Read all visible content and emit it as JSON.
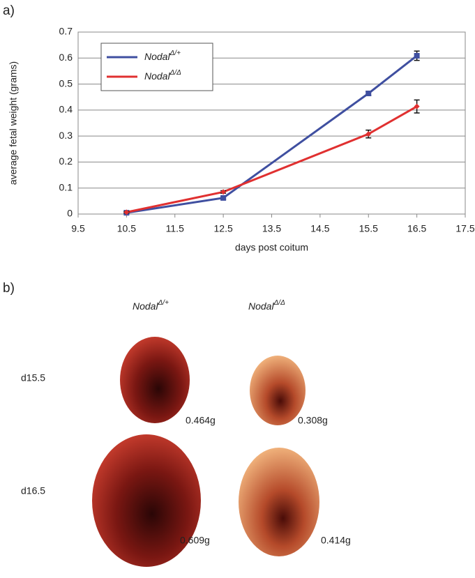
{
  "panel_a_label": "a)",
  "chart_data": {
    "type": "line",
    "x_label": "days post coitum",
    "y_label": "average fetal weight (grams)",
    "x": [
      10.5,
      12.5,
      15.5,
      16.5
    ],
    "xlim": [
      9.5,
      17.5
    ],
    "xticks": [
      9.5,
      10.5,
      11.5,
      12.5,
      13.5,
      14.5,
      15.5,
      16.5,
      17.5
    ],
    "ylim": [
      0,
      0.7
    ],
    "yticks": [
      0,
      0.1,
      0.2,
      0.3,
      0.4,
      0.5,
      0.6,
      0.7
    ],
    "grid": true,
    "legend": "upper left",
    "series": [
      {
        "name": "NodalΔ/+",
        "color": "#3f4fa0",
        "marker": "square",
        "values": [
          0.005,
          0.062,
          0.464,
          0.609
        ],
        "errors": [
          0.003,
          0.005,
          0.008,
          0.018
        ]
      },
      {
        "name": "NodalΔ/Δ",
        "color": "#e03030",
        "marker": "diamond",
        "values": [
          0.007,
          0.085,
          0.308,
          0.414
        ],
        "errors": [
          0.003,
          0.005,
          0.015,
          0.025
        ]
      }
    ]
  },
  "panel_b": {
    "label": "b)",
    "columns": [
      "NodalΔ/+",
      "NodalΔ/Δ"
    ],
    "rows": [
      "d15.5",
      "d16.5"
    ],
    "weights": [
      [
        "0.464g",
        "0.308g"
      ],
      [
        "0.609g",
        "0.414g"
      ]
    ]
  }
}
